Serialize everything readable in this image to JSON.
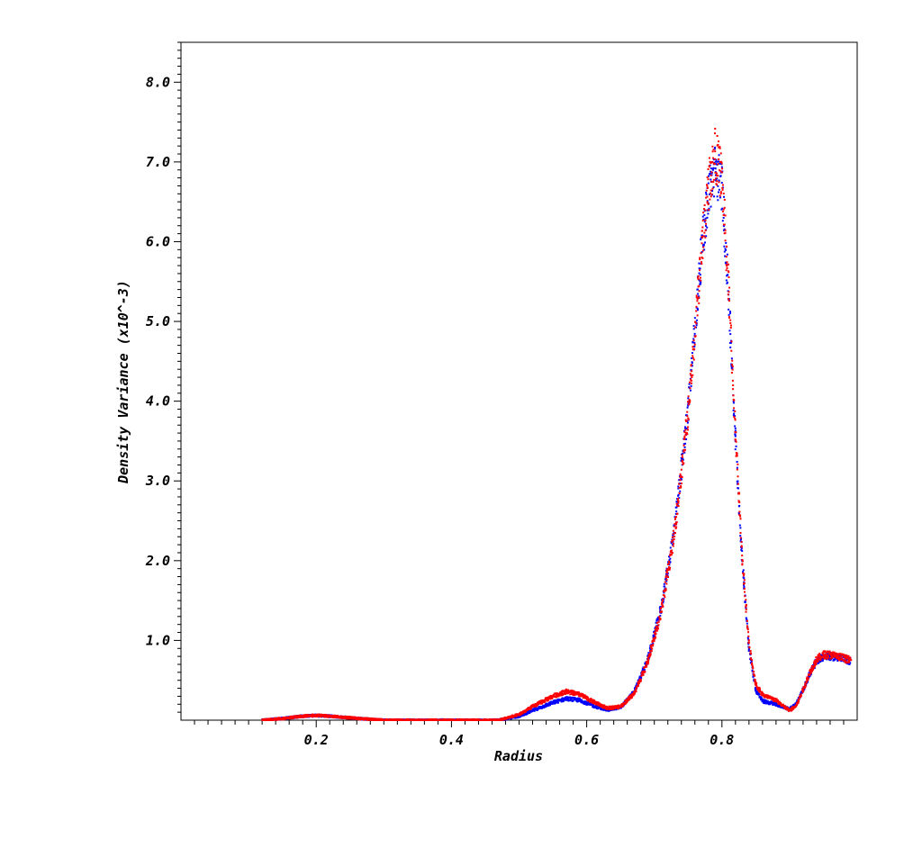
{
  "chart_data": {
    "type": "scatter",
    "title": "",
    "xlabel": "Radius",
    "ylabel": "Density Variance (x10^-3)",
    "xlim": [
      0.0,
      1.0
    ],
    "ylim": [
      0.0,
      8.5
    ],
    "x_ticks": [
      0.2,
      0.4,
      0.6,
      0.8
    ],
    "x_tick_labels": [
      "0.2",
      "0.4",
      "0.6",
      "0.8"
    ],
    "y_ticks": [
      1.0,
      2.0,
      3.0,
      4.0,
      5.0,
      6.0,
      7.0,
      8.0
    ],
    "y_tick_labels": [
      "1.0",
      "2.0",
      "3.0",
      "4.0",
      "5.0",
      "6.0",
      "7.0",
      "8.0"
    ],
    "grid": false,
    "legend": "none",
    "series": [
      {
        "color": "#0000ff",
        "x": [
          0.12,
          0.15,
          0.18,
          0.2,
          0.22,
          0.25,
          0.28,
          0.3,
          0.35,
          0.4,
          0.45,
          0.47,
          0.5,
          0.52,
          0.55,
          0.57,
          0.59,
          0.61,
          0.63,
          0.65,
          0.67,
          0.69,
          0.71,
          0.73,
          0.75,
          0.76,
          0.77,
          0.78,
          0.79,
          0.8,
          0.81,
          0.82,
          0.83,
          0.84,
          0.85,
          0.86,
          0.87,
          0.88,
          0.89,
          0.9,
          0.91,
          0.92,
          0.93,
          0.94,
          0.95,
          0.96,
          0.97,
          0.98,
          0.99
        ],
        "y": [
          0.0,
          0.02,
          0.05,
          0.06,
          0.05,
          0.03,
          0.01,
          0.0,
          0.0,
          0.0,
          0.0,
          0.0,
          0.05,
          0.12,
          0.22,
          0.27,
          0.25,
          0.18,
          0.13,
          0.16,
          0.35,
          0.75,
          1.4,
          2.4,
          3.9,
          4.9,
          5.9,
          6.6,
          6.9,
          6.7,
          5.3,
          3.5,
          2.0,
          0.9,
          0.38,
          0.24,
          0.22,
          0.2,
          0.17,
          0.14,
          0.2,
          0.38,
          0.58,
          0.74,
          0.8,
          0.8,
          0.79,
          0.77,
          0.74
        ]
      },
      {
        "color": "#ff0000",
        "x": [
          0.12,
          0.15,
          0.18,
          0.2,
          0.22,
          0.25,
          0.28,
          0.3,
          0.35,
          0.4,
          0.45,
          0.47,
          0.5,
          0.52,
          0.55,
          0.57,
          0.59,
          0.61,
          0.63,
          0.65,
          0.67,
          0.69,
          0.71,
          0.73,
          0.75,
          0.76,
          0.77,
          0.78,
          0.79,
          0.8,
          0.81,
          0.82,
          0.83,
          0.84,
          0.85,
          0.86,
          0.87,
          0.88,
          0.89,
          0.9,
          0.91,
          0.92,
          0.93,
          0.94,
          0.95,
          0.96,
          0.97,
          0.98,
          0.99
        ],
        "y": [
          0.0,
          0.02,
          0.05,
          0.06,
          0.05,
          0.03,
          0.01,
          0.0,
          0.0,
          0.0,
          0.0,
          0.0,
          0.07,
          0.17,
          0.3,
          0.36,
          0.32,
          0.23,
          0.15,
          0.17,
          0.33,
          0.72,
          1.35,
          2.35,
          3.85,
          4.85,
          5.9,
          6.7,
          7.1,
          6.8,
          5.4,
          3.6,
          2.05,
          0.95,
          0.45,
          0.32,
          0.28,
          0.25,
          0.18,
          0.12,
          0.18,
          0.38,
          0.6,
          0.76,
          0.82,
          0.82,
          0.8,
          0.78,
          0.75
        ]
      }
    ]
  }
}
